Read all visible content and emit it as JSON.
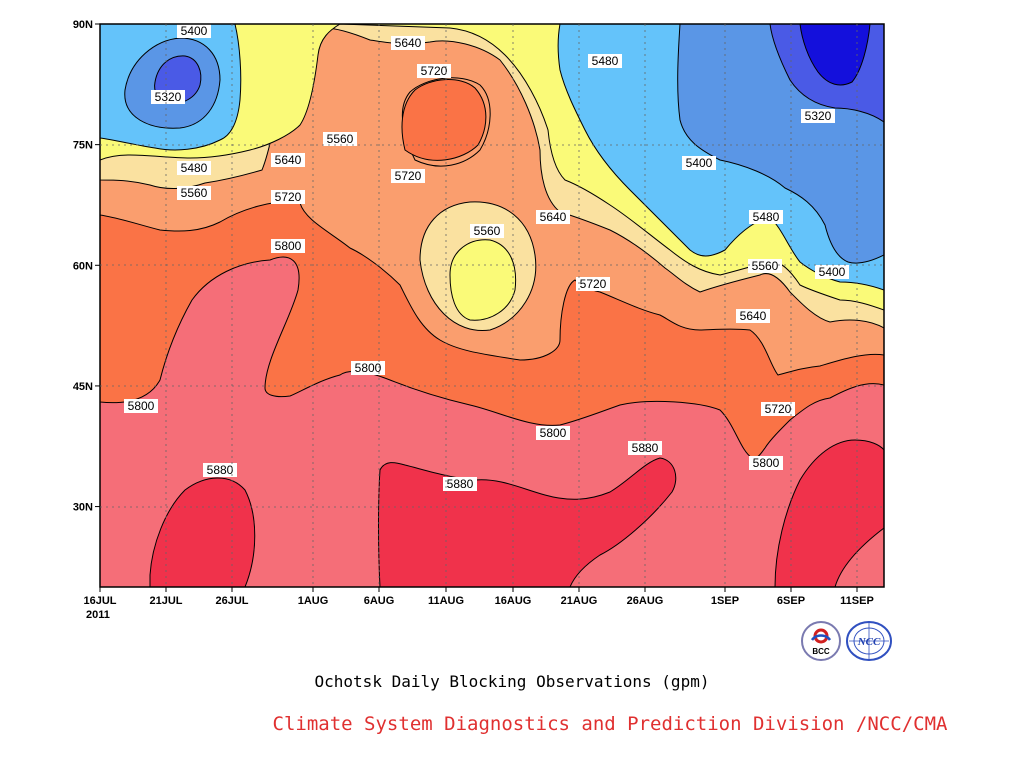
{
  "chart_data": {
    "type": "contour",
    "subtitle": "Ochotsk Daily Blocking Observations (gpm)",
    "credit": "Climate System Diagnostics and Prediction Division /NCC/CMA",
    "x_ticks": [
      "16JUL",
      "21JUL",
      "26JUL",
      "1AUG",
      "6AUG",
      "11AUG",
      "16AUG",
      "21AUG",
      "26AUG",
      "1SEP",
      "6SEP",
      "11SEP"
    ],
    "x_year": "2011",
    "y_ticks": [
      "30N",
      "45N",
      "60N",
      "75N",
      "90N"
    ],
    "ylim": [
      20,
      90
    ],
    "levels": [
      5320,
      5400,
      5480,
      5560,
      5640,
      5720,
      5800,
      5880
    ],
    "fill_colors": [
      "#1410dc",
      "#4a5ae6",
      "#5a96e6",
      "#64c3fa",
      "#fafa78",
      "#fae1a0",
      "#fa9e6e",
      "#fa7346",
      "#f56e78",
      "#f0324b"
    ],
    "contour_labels": [
      {
        "text": "5400"
      },
      {
        "text": "5320"
      },
      {
        "text": "5480"
      },
      {
        "text": "5560"
      },
      {
        "text": "5640"
      },
      {
        "text": "5720"
      },
      {
        "text": "5800"
      },
      {
        "text": "5640"
      },
      {
        "text": "5560"
      },
      {
        "text": "5720"
      },
      {
        "text": "5720"
      },
      {
        "text": "5800"
      },
      {
        "text": "5800"
      },
      {
        "text": "5880"
      },
      {
        "text": "5880"
      },
      {
        "text": "5640"
      },
      {
        "text": "5720"
      },
      {
        "text": "5560"
      },
      {
        "text": "5640"
      },
      {
        "text": "5720"
      },
      {
        "text": "5800"
      },
      {
        "text": "5880"
      },
      {
        "text": "5480"
      },
      {
        "text": "5400"
      },
      {
        "text": "5480"
      },
      {
        "text": "5560"
      },
      {
        "text": "5640"
      },
      {
        "text": "5720"
      },
      {
        "text": "5800"
      },
      {
        "text": "5320"
      },
      {
        "text": "5400"
      }
    ]
  },
  "logos": {
    "left": "BCC",
    "right": "NCC"
  }
}
